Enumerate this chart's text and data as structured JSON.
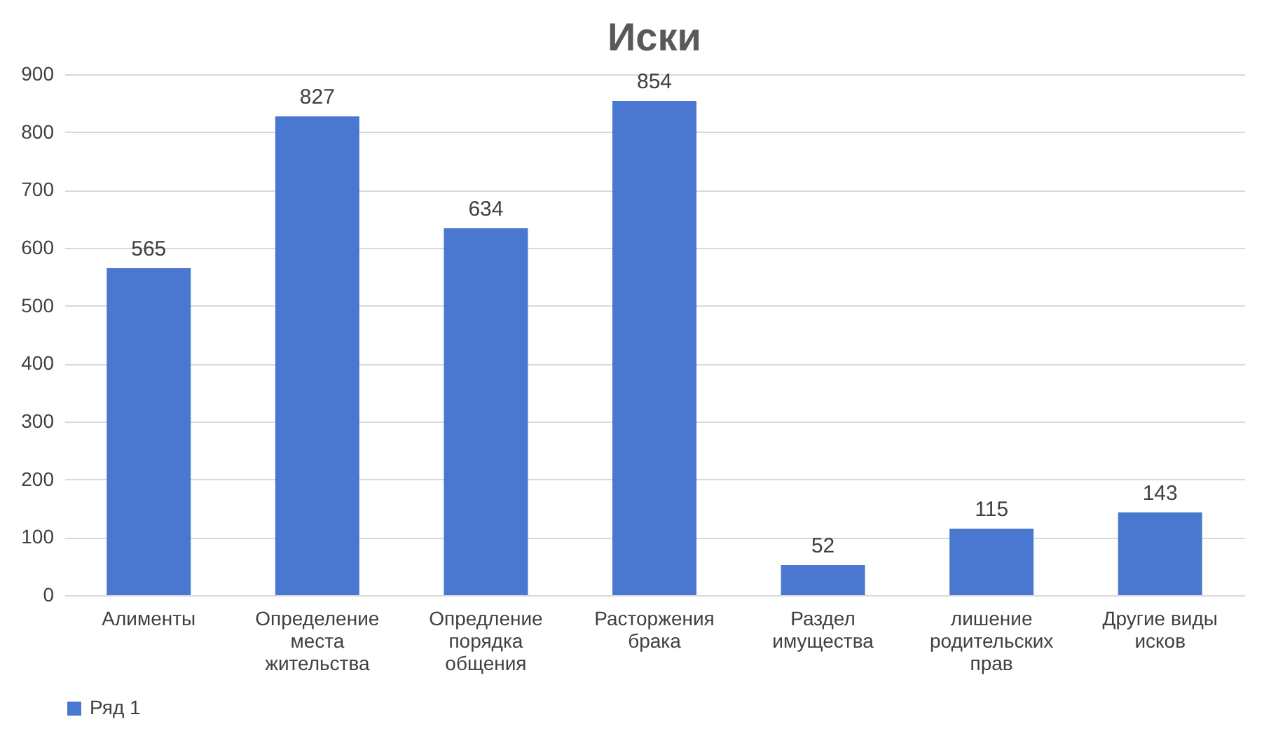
{
  "chart_data": {
    "type": "bar",
    "title": "Иски",
    "categories": [
      "Алименты",
      "Определение места жительства",
      "Опредление порядка общения",
      "Расторжения брака",
      "Раздел имущества",
      "лишение родительских прав",
      "Другие виды исков"
    ],
    "series": [
      {
        "name": "Ряд 1",
        "color": "#4a78d0",
        "values": [
          565,
          827,
          634,
          854,
          52,
          115,
          143
        ]
      }
    ],
    "ylim": [
      0,
      900
    ],
    "yticks": [
      0,
      100,
      200,
      300,
      400,
      500,
      600,
      700,
      800,
      900
    ],
    "grid": "y",
    "legend": "bottom",
    "data_labels": true
  }
}
